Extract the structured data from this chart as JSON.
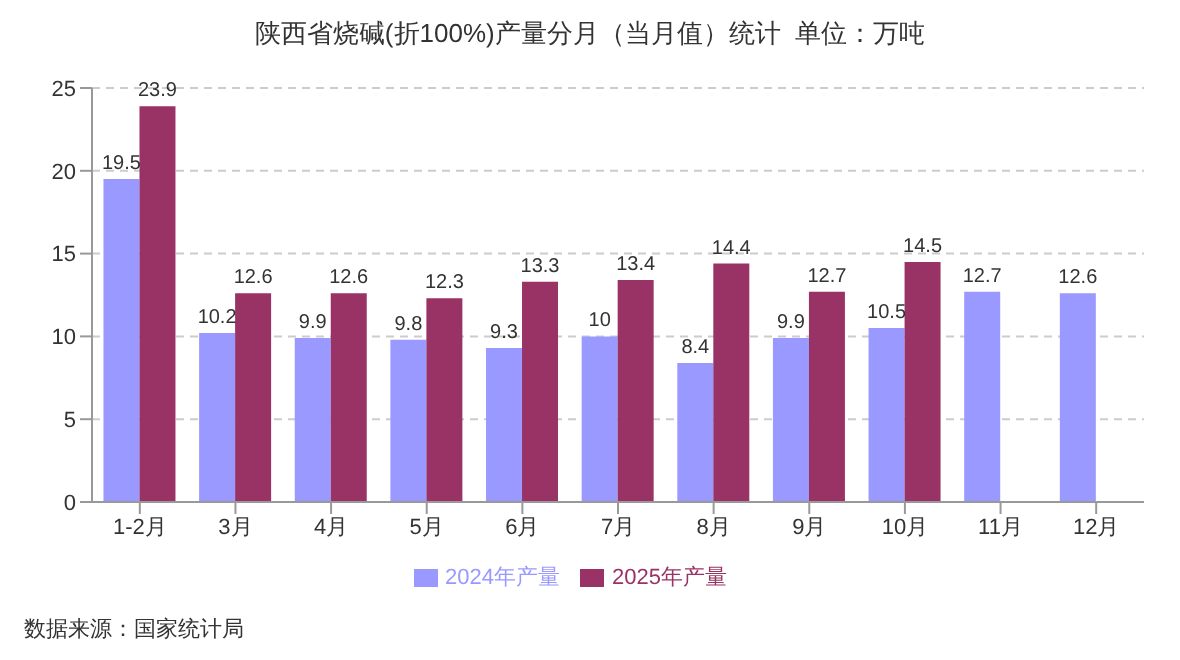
{
  "chart_data": {
    "type": "bar",
    "title": "陕西省烧碱(折100%)产量分月（当月值）统计  单位：万吨",
    "categories": [
      "1-2月",
      "3月",
      "4月",
      "5月",
      "6月",
      "7月",
      "8月",
      "9月",
      "10月",
      "11月",
      "12月"
    ],
    "series": [
      {
        "name": "2024年产量",
        "color": "#9999ff",
        "values": [
          19.5,
          10.2,
          9.9,
          9.8,
          9.3,
          10,
          8.4,
          9.9,
          10.5,
          12.7,
          12.6
        ]
      },
      {
        "name": "2025年产量",
        "color": "#993366",
        "values": [
          23.9,
          12.6,
          12.6,
          12.3,
          13.3,
          13.4,
          14.4,
          12.7,
          14.5,
          null,
          null
        ]
      }
    ],
    "ylim": [
      0,
      25
    ],
    "yticks": [
      0,
      5,
      10,
      15,
      20,
      25
    ],
    "grid": "y",
    "legend": "bottom",
    "data_labels": true,
    "annotations": [
      "数据来源：国家统计局"
    ]
  }
}
